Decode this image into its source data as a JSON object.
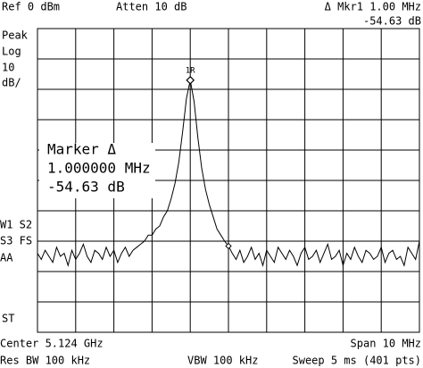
{
  "header": {
    "ref": "Ref 0 dBm",
    "atten": "Atten 10 dB",
    "marker": "Δ Mkr1  1.00 MHz",
    "marker_value": "-54.63 dB"
  },
  "side": {
    "detector": "Peak",
    "scale_type": "Log",
    "scale_value": "10",
    "scale_unit": "dB/",
    "w1s2": "W1  S2",
    "s3fs": "S3  FS",
    "aa": "AA",
    "st": "ST"
  },
  "marker_box": {
    "title": "Marker Δ",
    "frequency": "1.000000 MHz",
    "level": "-54.63 dB"
  },
  "footer": {
    "center": "Center 5.124 GHz",
    "span": "Span 10 MHz",
    "res_bw": "Res BW 100 kHz",
    "vbw": "VBW 100 kHz",
    "sweep": "Sweep 5 ms (401 pts)"
  },
  "chart_data": {
    "type": "line",
    "color": "#000000",
    "marker_label": "1R",
    "ylim": [
      -100,
      0
    ],
    "values": [
      -74,
      -76,
      -73,
      -75,
      -77,
      -72,
      -75,
      -74,
      -78,
      -73,
      -76,
      -74,
      -71,
      -75,
      -77,
      -73,
      -74,
      -76,
      -72,
      -75,
      -73,
      -77,
      -74,
      -72,
      -75,
      -73,
      -72,
      -71,
      -70,
      -68,
      -68,
      -66,
      -65,
      -62,
      -60,
      -56,
      -51,
      -44,
      -34,
      -23,
      -17,
      -24,
      -36,
      -46,
      -53,
      -58,
      -62,
      -66,
      -68,
      -70,
      -71.6,
      -74,
      -76,
      -73,
      -77,
      -75,
      -72,
      -76,
      -74,
      -78,
      -73,
      -75,
      -77,
      -72,
      -74,
      -76,
      -73,
      -75,
      -78,
      -74,
      -72,
      -76,
      -75,
      -73,
      -77,
      -74,
      -71,
      -76,
      -75,
      -73,
      -78,
      -74,
      -76,
      -72,
      -75,
      -77,
      -73,
      -74,
      -76,
      -75,
      -72,
      -77,
      -74,
      -73,
      -76,
      -75,
      -78,
      -72,
      -74,
      -76,
      -70
    ]
  }
}
